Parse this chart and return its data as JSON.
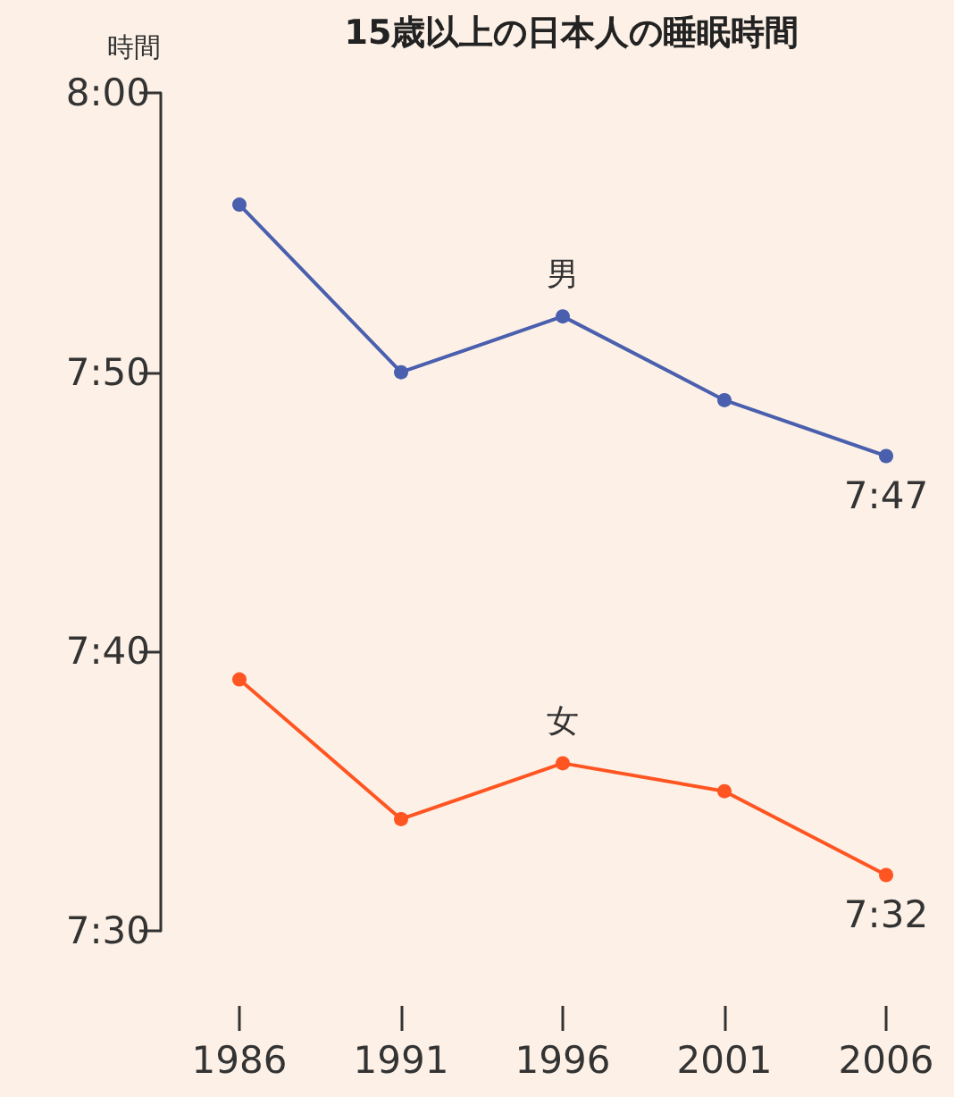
{
  "chart_data": {
    "type": "line",
    "title": "15歳以上の日本人の睡眠時間",
    "ylabel": "時間",
    "categories": [
      "1986",
      "1991",
      "1996",
      "2001",
      "2006"
    ],
    "series": [
      {
        "name": "男",
        "color": "#4a5fae",
        "values": [
          476,
          470,
          472,
          469,
          467
        ],
        "value_labels": [
          null,
          null,
          null,
          null,
          "7:47"
        ]
      },
      {
        "name": "女",
        "color": "#ff5522",
        "values": [
          459,
          454,
          456,
          455,
          452
        ],
        "value_labels": [
          null,
          null,
          null,
          null,
          "7:32"
        ]
      }
    ],
    "ylim": [
      450,
      480
    ],
    "yticks": [
      {
        "value": 450,
        "label": "7:30"
      },
      {
        "value": 460,
        "label": "7:40"
      },
      {
        "value": 470,
        "label": "7:50"
      },
      {
        "value": 480,
        "label": "8:00"
      }
    ],
    "grid": false,
    "legend": false,
    "marker": "circle",
    "line_style": "solid"
  }
}
